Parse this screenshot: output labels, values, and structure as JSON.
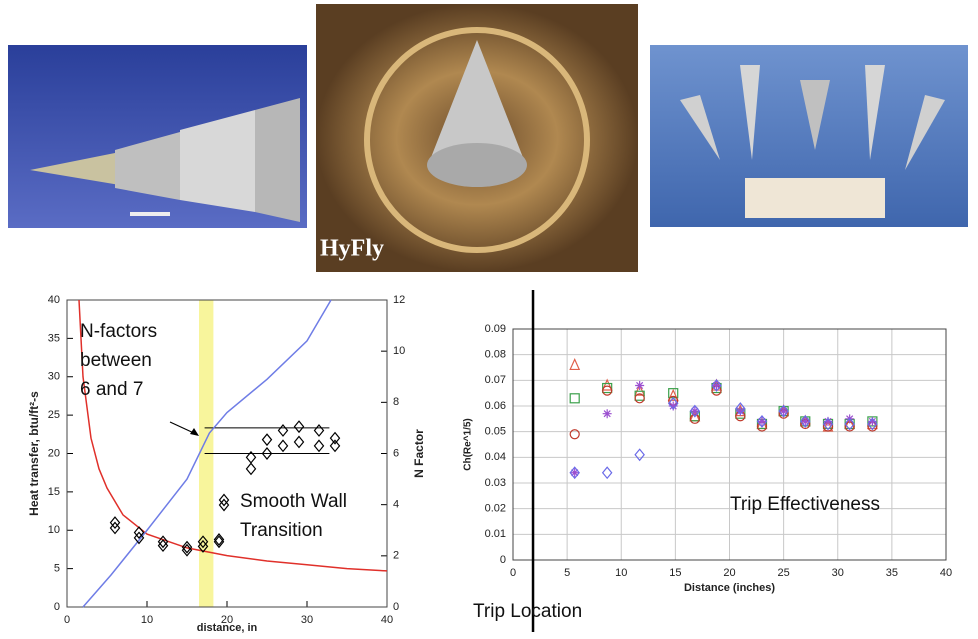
{
  "image_caption": "HyFly",
  "chart_data": [
    {
      "type": "line",
      "xlabel": "distance, in",
      "ylabel": "Heat transfer, btu/ft²-s",
      "y2label": "N Factor",
      "xlim": [
        0,
        40
      ],
      "xticks": [
        0,
        10,
        20,
        30,
        40
      ],
      "ylim": [
        0,
        40
      ],
      "yticks": [
        0,
        5,
        10,
        15,
        20,
        25,
        30,
        35,
        40
      ],
      "y2lim": [
        0,
        12
      ],
      "y2ticks": [
        0,
        2,
        4,
        6,
        8,
        10,
        12
      ],
      "highlight_x": [
        16.5,
        18.3
      ],
      "highlight_color": "#f8f59c",
      "y2_refs": [
        6,
        7
      ],
      "ref_xlim": [
        17.2,
        32.8
      ],
      "annotation": "N-factors between 6 and 7",
      "series": [
        {
          "color": "#e0302a",
          "x": [
            1.5,
            2,
            3,
            4,
            5,
            7,
            10,
            15,
            20,
            25,
            30,
            35,
            40
          ],
          "values": [
            40,
            30,
            22,
            18,
            15.5,
            12,
            9.5,
            7.7,
            6.7,
            6,
            5.5,
            5,
            4.7
          ]
        },
        {
          "color": "#6f7de6",
          "axis": "y2",
          "x": [
            2,
            5.5,
            10,
            15,
            17.8,
            20,
            25,
            30,
            33
          ],
          "values": [
            0,
            1.25,
            3,
            5,
            6.8,
            7.6,
            8.9,
            10.4,
            12
          ]
        },
        {
          "name": "Smooth Wall Transition",
          "type": "scatter",
          "marker": "diamond",
          "color": "#000000",
          "x": [
            6,
            6,
            9,
            9,
            12,
            12,
            15,
            15,
            17,
            17,
            19,
            19,
            23,
            23,
            25,
            25,
            27,
            27,
            29,
            29,
            31.5,
            31.5,
            33.5,
            33.5
          ],
          "values": [
            10.3,
            11,
            9,
            9.7,
            8,
            8.5,
            7.4,
            7.8,
            7.9,
            8.5,
            8.5,
            8.8,
            18,
            19.5,
            20,
            21.8,
            21,
            23,
            21.5,
            23.5,
            21,
            23,
            21,
            22
          ]
        }
      ]
    },
    {
      "type": "scatter",
      "xlabel": "Distance (inches)",
      "ylabel": "Ch(Re^1/5)",
      "xlim": [
        0,
        40
      ],
      "xticks": [
        0,
        5,
        10,
        15,
        20,
        25,
        30,
        35,
        40
      ],
      "ylim": [
        0,
        0.09
      ],
      "yticks": [
        0,
        0.01,
        0.02,
        0.03,
        0.04,
        0.05,
        0.06,
        0.07,
        0.08,
        0.09
      ],
      "grid": true,
      "annotation": "Trip Effectiveness",
      "vline": {
        "x": 1.85,
        "label": "Trip Location"
      },
      "x": [
        5.7,
        8.7,
        11.7,
        14.8,
        16.8,
        18.8,
        21,
        23,
        25,
        27,
        29.1,
        31.1,
        33.2
      ],
      "series": [
        {
          "marker": "triangle",
          "color": "#e0604a",
          "values": [
            0.076,
            0.068,
            0.066,
            0.064,
            0.056,
            0.068,
            0.058,
            0.053,
            0.058,
            0.054,
            0.052,
            0.053,
            0.053
          ]
        },
        {
          "marker": "square",
          "color": "#3aa04a",
          "values": [
            0.063,
            0.067,
            0.064,
            0.065,
            0.056,
            0.067,
            0.057,
            0.053,
            0.058,
            0.054,
            0.053,
            0.053,
            0.054
          ]
        },
        {
          "marker": "circle",
          "color": "#c0392b",
          "values": [
            0.049,
            0.066,
            0.063,
            0.062,
            0.055,
            0.066,
            0.056,
            0.052,
            0.057,
            0.053,
            0.052,
            0.052,
            0.052
          ]
        },
        {
          "marker": "star",
          "color": "#9b4fd0",
          "values": [
            0.034,
            0.057,
            0.068,
            0.06,
            0.058,
            0.068,
            0.058,
            0.054,
            0.058,
            0.054,
            0.054,
            0.055,
            0.054
          ]
        },
        {
          "marker": "diamond",
          "color": "#6a6ae8",
          "values": [
            0.034,
            0.034,
            0.041,
            0.061,
            0.058,
            0.068,
            0.059,
            0.054,
            0.058,
            0.054,
            0.053,
            0.053,
            0.053
          ]
        }
      ]
    }
  ]
}
